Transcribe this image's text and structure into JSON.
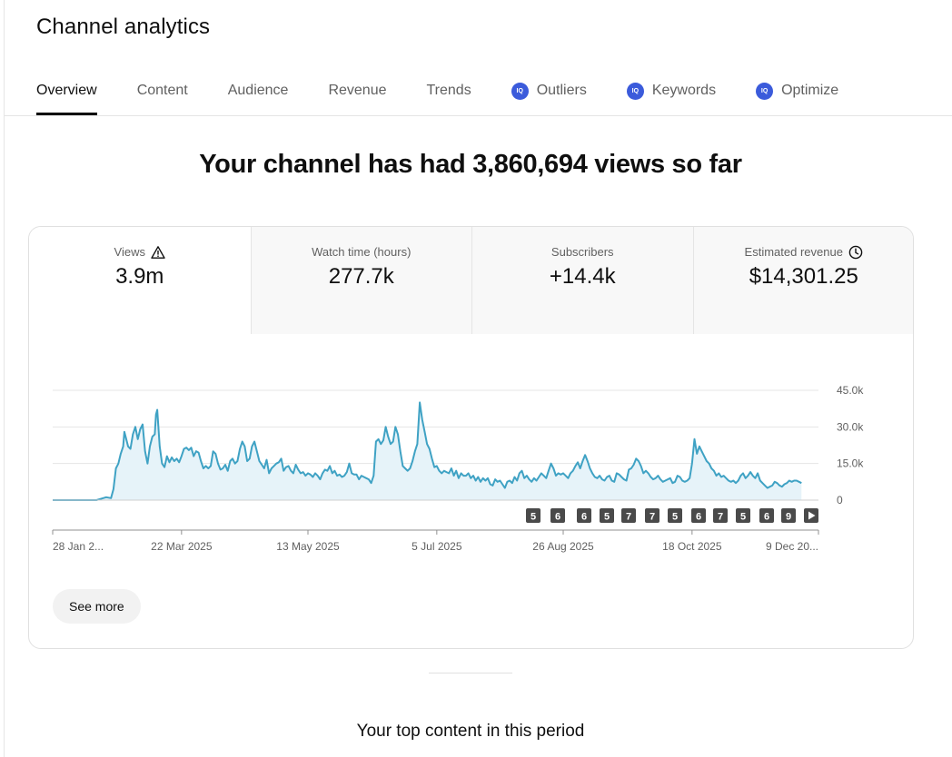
{
  "page": {
    "title": "Channel analytics",
    "headline": "Your channel has had 3,860,694 views so far",
    "see_more_label": "See more",
    "top_content_heading": "Your top content in this period"
  },
  "tabs": [
    {
      "label": "Overview",
      "active": true,
      "vidiq": false
    },
    {
      "label": "Content",
      "active": false,
      "vidiq": false
    },
    {
      "label": "Audience",
      "active": false,
      "vidiq": false
    },
    {
      "label": "Revenue",
      "active": false,
      "vidiq": false
    },
    {
      "label": "Trends",
      "active": false,
      "vidiq": false
    },
    {
      "label": "Outliers",
      "active": false,
      "vidiq": true
    },
    {
      "label": "Keywords",
      "active": false,
      "vidiq": true
    },
    {
      "label": "Optimize",
      "active": false,
      "vidiq": true
    }
  ],
  "vidiq_badge_text": "IQ",
  "metrics": [
    {
      "label": "Views",
      "value": "3.9m",
      "icon": "warning-icon",
      "active": true
    },
    {
      "label": "Watch time (hours)",
      "value": "277.7k",
      "icon": "",
      "active": false
    },
    {
      "label": "Subscribers",
      "value": "+14.4k",
      "icon": "",
      "active": false
    },
    {
      "label": "Estimated revenue",
      "value": "$14,301.25",
      "icon": "clock-icon",
      "active": false
    }
  ],
  "colors": {
    "line": "#3fa2c4",
    "fill": "#e6f3f9",
    "marker_bg": "#4a4a4a",
    "vidiq": "#3b5bdb"
  },
  "chart_data": {
    "type": "area",
    "title": "Views",
    "ylabel": "",
    "xlabel": "",
    "ylim": [
      0,
      45000
    ],
    "y_ticks": [
      0,
      15000,
      30000,
      45000
    ],
    "y_tick_labels": [
      "0",
      "15.0k",
      "30.0k",
      "45.0k"
    ],
    "x_tick_labels": [
      "28 Jan 2...",
      "22 Mar 2025",
      "13 May 2025",
      "5 Jul 2025",
      "26 Aug 2025",
      "18 Oct 2025",
      "9 Dec 20..."
    ],
    "x_tick_days": [
      0,
      53,
      105,
      158,
      210,
      263,
      315
    ],
    "series": [
      {
        "name": "Views",
        "points": [
          [
            0,
            0
          ],
          [
            10,
            0
          ],
          [
            18,
            0
          ],
          [
            20,
            600
          ],
          [
            22,
            1200
          ],
          [
            24,
            800
          ],
          [
            25,
            4500
          ],
          [
            26,
            13000
          ],
          [
            27,
            15000
          ],
          [
            28,
            19000
          ],
          [
            29,
            22000
          ],
          [
            29.5,
            28000
          ],
          [
            30,
            26000
          ],
          [
            31,
            22000
          ],
          [
            32,
            21000
          ],
          [
            33,
            27000
          ],
          [
            34,
            30000
          ],
          [
            35,
            25000
          ],
          [
            36,
            29000
          ],
          [
            37,
            31000
          ],
          [
            38,
            20000
          ],
          [
            39,
            15000
          ],
          [
            40,
            22000
          ],
          [
            41,
            26000
          ],
          [
            42,
            27000
          ],
          [
            42.5,
            35000
          ],
          [
            43,
            37000
          ],
          [
            44,
            22000
          ],
          [
            45,
            15000
          ],
          [
            46,
            13500
          ],
          [
            47,
            18000
          ],
          [
            48,
            15500
          ],
          [
            49,
            17500
          ],
          [
            50,
            16000
          ],
          [
            51,
            17000
          ],
          [
            52,
            15500
          ],
          [
            53,
            18000
          ],
          [
            54,
            21000
          ],
          [
            55,
            21500
          ],
          [
            56,
            20500
          ],
          [
            57,
            21500
          ],
          [
            58,
            18000
          ],
          [
            59,
            20000
          ],
          [
            60,
            19500
          ],
          [
            61,
            16000
          ],
          [
            62,
            13000
          ],
          [
            63,
            14000
          ],
          [
            64,
            13000
          ],
          [
            65,
            14000
          ],
          [
            66,
            20000
          ],
          [
            67,
            19000
          ],
          [
            68,
            15000
          ],
          [
            69,
            12500
          ],
          [
            70,
            13000
          ],
          [
            71,
            14500
          ],
          [
            72,
            12000
          ],
          [
            73,
            16000
          ],
          [
            74,
            17000
          ],
          [
            75,
            15000
          ],
          [
            76,
            16000
          ],
          [
            77,
            21000
          ],
          [
            78,
            24000
          ],
          [
            79,
            22000
          ],
          [
            80,
            16000
          ],
          [
            81,
            17000
          ],
          [
            82,
            22000
          ],
          [
            83,
            24000
          ],
          [
            84,
            20000
          ],
          [
            85,
            16000
          ],
          [
            86,
            14500
          ],
          [
            87,
            13000
          ],
          [
            88,
            16500
          ],
          [
            89,
            11000
          ],
          [
            90,
            13000
          ],
          [
            91,
            14000
          ],
          [
            92,
            15000
          ],
          [
            93,
            15500
          ],
          [
            94,
            17000
          ],
          [
            95,
            12000
          ],
          [
            96,
            13500
          ],
          [
            97,
            14000
          ],
          [
            98,
            12000
          ],
          [
            99,
            11000
          ],
          [
            100,
            14500
          ],
          [
            101,
            12500
          ],
          [
            102,
            11000
          ],
          [
            103,
            11500
          ],
          [
            104,
            10000
          ],
          [
            105,
            11000
          ],
          [
            106,
            10500
          ],
          [
            107,
            9500
          ],
          [
            108,
            11000
          ],
          [
            109,
            10000
          ],
          [
            110,
            8500
          ],
          [
            111,
            11000
          ],
          [
            112,
            12500
          ],
          [
            113,
            12000
          ],
          [
            114,
            14000
          ],
          [
            115,
            11000
          ],
          [
            116,
            12000
          ],
          [
            117,
            10000
          ],
          [
            118,
            10500
          ],
          [
            119,
            9500
          ],
          [
            120,
            10000
          ],
          [
            121,
            11500
          ],
          [
            122,
            15000
          ],
          [
            123,
            11000
          ],
          [
            124,
            10500
          ],
          [
            125,
            10500
          ],
          [
            126,
            8500
          ],
          [
            127,
            10000
          ],
          [
            128,
            9500
          ],
          [
            129,
            9000
          ],
          [
            130,
            8500
          ],
          [
            131,
            7000
          ],
          [
            132,
            10000
          ],
          [
            133,
            24000
          ],
          [
            134,
            25000
          ],
          [
            135,
            23000
          ],
          [
            136,
            24500
          ],
          [
            137,
            30000
          ],
          [
            138,
            26000
          ],
          [
            139,
            23000
          ],
          [
            140,
            24000
          ],
          [
            141,
            30000
          ],
          [
            142,
            27000
          ],
          [
            143,
            20000
          ],
          [
            144,
            14000
          ],
          [
            145,
            13000
          ],
          [
            146,
            12000
          ],
          [
            147,
            13000
          ],
          [
            148,
            16000
          ],
          [
            149,
            20000
          ],
          [
            150,
            23000
          ],
          [
            151,
            40000
          ],
          [
            152,
            33000
          ],
          [
            153,
            28000
          ],
          [
            154,
            23000
          ],
          [
            155,
            21000
          ],
          [
            156,
            17000
          ],
          [
            157,
            13500
          ],
          [
            158,
            14000
          ],
          [
            159,
            12000
          ],
          [
            160,
            11000
          ],
          [
            161,
            12000
          ],
          [
            162,
            11500
          ],
          [
            163,
            11000
          ],
          [
            164,
            13000
          ],
          [
            165,
            10000
          ],
          [
            166,
            12000
          ],
          [
            167,
            9000
          ],
          [
            168,
            11000
          ],
          [
            169,
            10000
          ],
          [
            170,
            10000
          ],
          [
            171,
            11000
          ],
          [
            172,
            9000
          ],
          [
            173,
            10000
          ],
          [
            174,
            8000
          ],
          [
            175,
            9500
          ],
          [
            176,
            7500
          ],
          [
            177,
            9000
          ],
          [
            178,
            8000
          ],
          [
            179,
            9000
          ],
          [
            180,
            6500
          ],
          [
            181,
            6000
          ],
          [
            182,
            8500
          ],
          [
            183,
            7500
          ],
          [
            184,
            8000
          ],
          [
            185,
            6500
          ],
          [
            186,
            5000
          ],
          [
            187,
            7500
          ],
          [
            188,
            8000
          ],
          [
            189,
            7000
          ],
          [
            190,
            9500
          ],
          [
            191,
            8000
          ],
          [
            192,
            11000
          ],
          [
            193,
            12000
          ],
          [
            194,
            9000
          ],
          [
            195,
            10000
          ],
          [
            196,
            8500
          ],
          [
            197,
            7500
          ],
          [
            198,
            9000
          ],
          [
            199,
            8000
          ],
          [
            200,
            9500
          ],
          [
            201,
            11000
          ],
          [
            202,
            10000
          ],
          [
            203,
            9000
          ],
          [
            204,
            12000
          ],
          [
            205,
            15000
          ],
          [
            206,
            13000
          ],
          [
            207,
            10000
          ],
          [
            208,
            11000
          ],
          [
            209,
            10500
          ],
          [
            210,
            11000
          ],
          [
            211,
            10000
          ],
          [
            212,
            9000
          ],
          [
            213,
            11000
          ],
          [
            214,
            12000
          ],
          [
            215,
            14000
          ],
          [
            216,
            15500
          ],
          [
            217,
            13000
          ],
          [
            218,
            16000
          ],
          [
            219,
            18500
          ],
          [
            220,
            16000
          ],
          [
            221,
            13000
          ],
          [
            222,
            11000
          ],
          [
            223,
            9500
          ],
          [
            224,
            9000
          ],
          [
            225,
            10000
          ],
          [
            226,
            8500
          ],
          [
            227,
            8000
          ],
          [
            228,
            9500
          ],
          [
            229,
            10000
          ],
          [
            230,
            8000
          ],
          [
            231,
            7500
          ],
          [
            232,
            11000
          ],
          [
            233,
            10500
          ],
          [
            234,
            9500
          ],
          [
            235,
            8500
          ],
          [
            236,
            8000
          ],
          [
            237,
            12500
          ],
          [
            238,
            13000
          ],
          [
            239,
            14500
          ],
          [
            240,
            17000
          ],
          [
            241,
            16000
          ],
          [
            242,
            14000
          ],
          [
            243,
            11000
          ],
          [
            244,
            12000
          ],
          [
            245,
            11000
          ],
          [
            246,
            9500
          ],
          [
            247,
            8500
          ],
          [
            248,
            9000
          ],
          [
            249,
            10000
          ],
          [
            250,
            8500
          ],
          [
            251,
            7500
          ],
          [
            252,
            8000
          ],
          [
            253,
            8500
          ],
          [
            254,
            9000
          ],
          [
            255,
            7000
          ],
          [
            256,
            7500
          ],
          [
            257,
            10000
          ],
          [
            258,
            9500
          ],
          [
            259,
            8000
          ],
          [
            260,
            7500
          ],
          [
            261,
            8000
          ],
          [
            262,
            9000
          ],
          [
            263,
            15000
          ],
          [
            264,
            25000
          ],
          [
            265,
            19000
          ],
          [
            266,
            22000
          ],
          [
            267,
            20000
          ],
          [
            268,
            18000
          ],
          [
            269,
            16000
          ],
          [
            270,
            15000
          ],
          [
            271,
            13000
          ],
          [
            272,
            12000
          ],
          [
            273,
            10000
          ],
          [
            274,
            11000
          ],
          [
            275,
            9500
          ],
          [
            276,
            10000
          ],
          [
            277,
            9000
          ],
          [
            278,
            8000
          ],
          [
            279,
            7500
          ],
          [
            280,
            8000
          ],
          [
            281,
            7000
          ],
          [
            282,
            8000
          ],
          [
            283,
            10000
          ],
          [
            284,
            11000
          ],
          [
            285,
            9000
          ],
          [
            286,
            10000
          ],
          [
            287,
            11500
          ],
          [
            288,
            10000
          ],
          [
            289,
            9000
          ],
          [
            290,
            11000
          ],
          [
            291,
            8000
          ],
          [
            292,
            7000
          ],
          [
            293,
            6000
          ],
          [
            294,
            5000
          ],
          [
            295,
            5500
          ],
          [
            296,
            6000
          ],
          [
            297,
            7500
          ],
          [
            298,
            7000
          ],
          [
            299,
            6000
          ],
          [
            300,
            5500
          ],
          [
            301,
            6500
          ],
          [
            302,
            7000
          ],
          [
            303,
            8000
          ],
          [
            304,
            7500
          ],
          [
            305,
            8000
          ],
          [
            306,
            8000
          ],
          [
            307,
            7500
          ],
          [
            308,
            7000
          ]
        ]
      }
    ],
    "x_domain": [
      0,
      315
    ],
    "event_markers": [
      "5",
      "6",
      "6",
      "5",
      "7",
      "7",
      "5",
      "6",
      "7",
      "5",
      "6",
      "9",
      ""
    ]
  }
}
